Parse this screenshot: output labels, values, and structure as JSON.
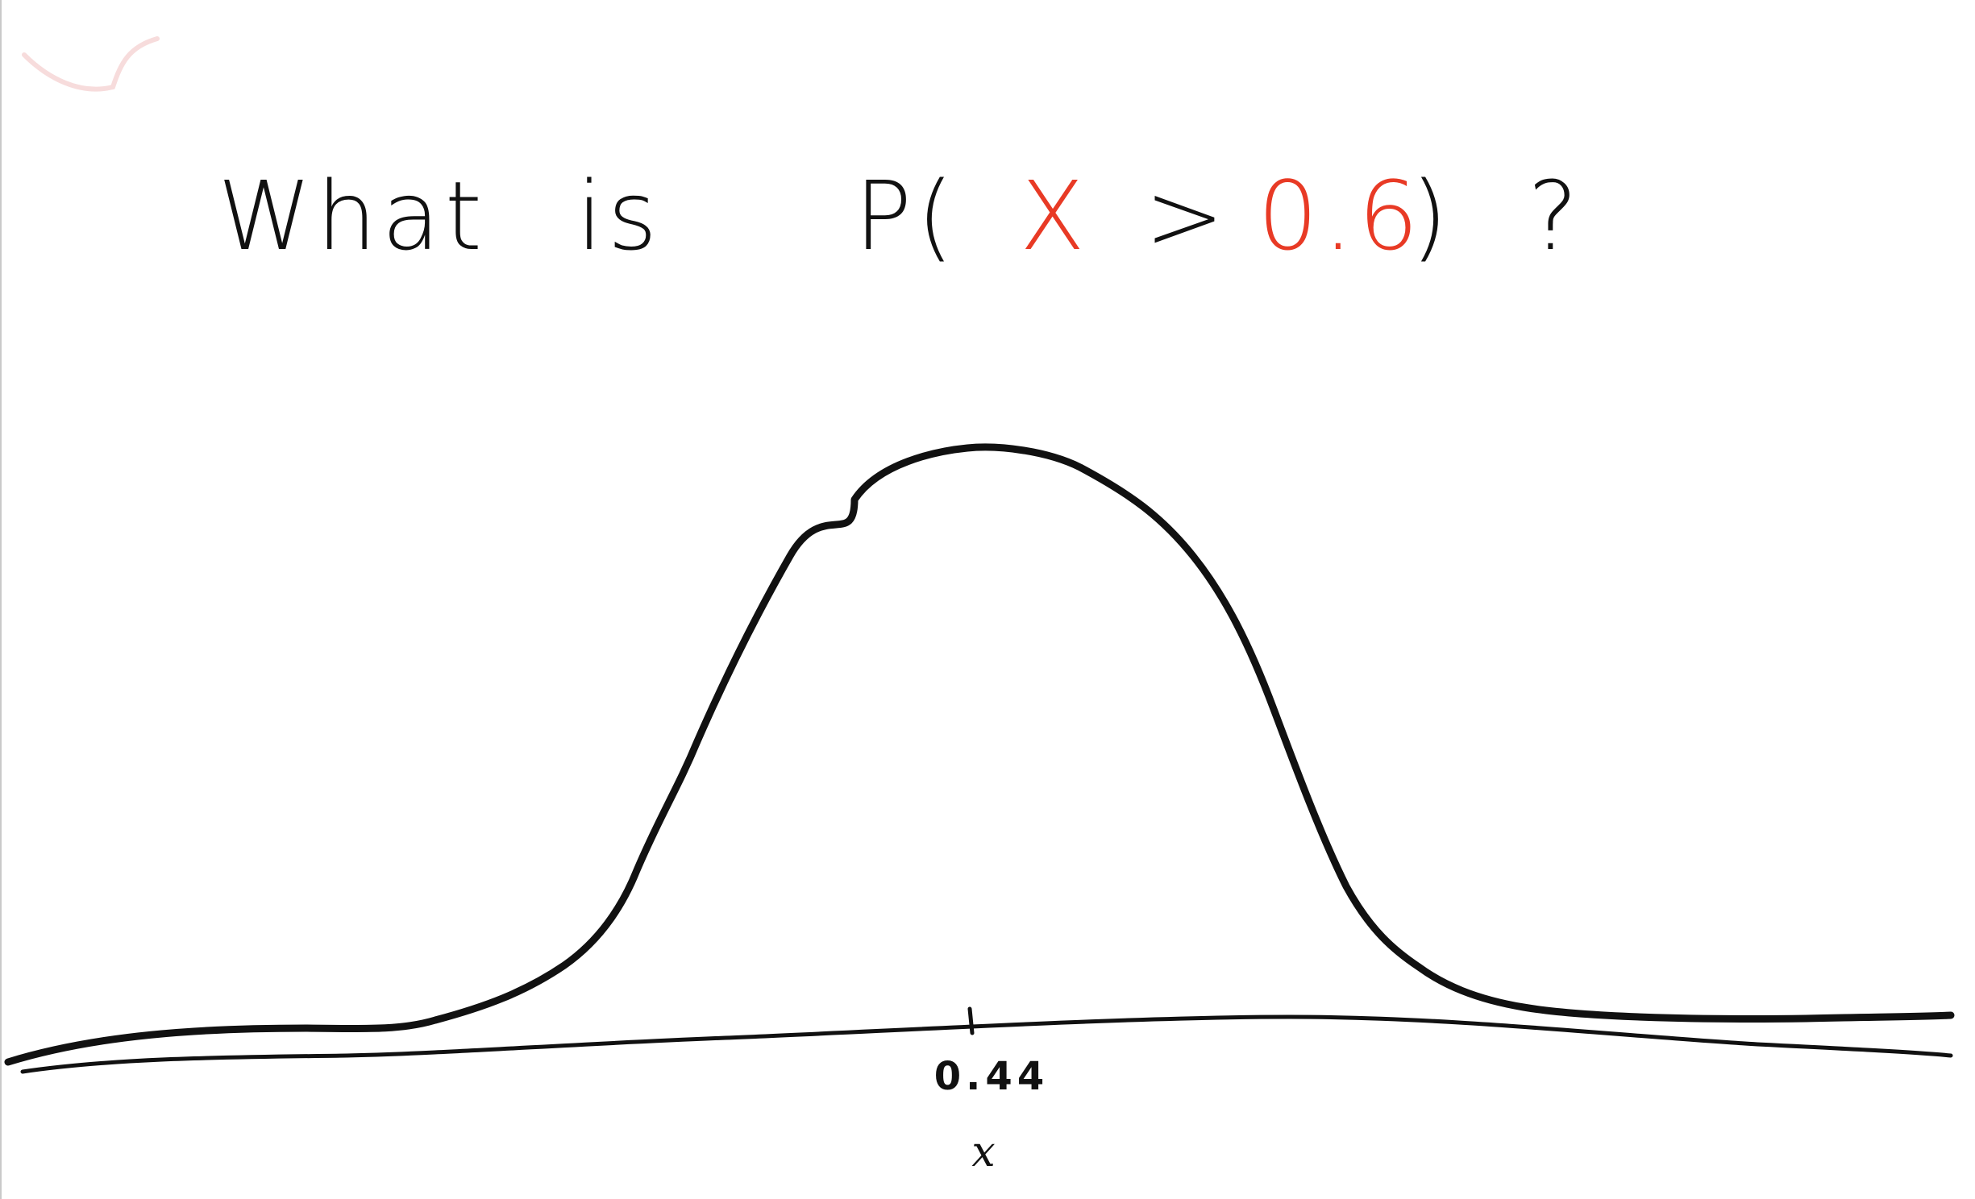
{
  "question": {
    "word1": "What",
    "word2": "is",
    "prob_open": "P(",
    "variable": "X",
    "operator": ">",
    "threshold": "0.6",
    "prob_close": ")",
    "question_mark": "?"
  },
  "axis": {
    "tick_label": "0.44",
    "x_label": "x"
  },
  "colors": {
    "ink": "#111111",
    "accent": "#e83a25"
  },
  "icons": {
    "corner_mark": "red-scribble"
  }
}
